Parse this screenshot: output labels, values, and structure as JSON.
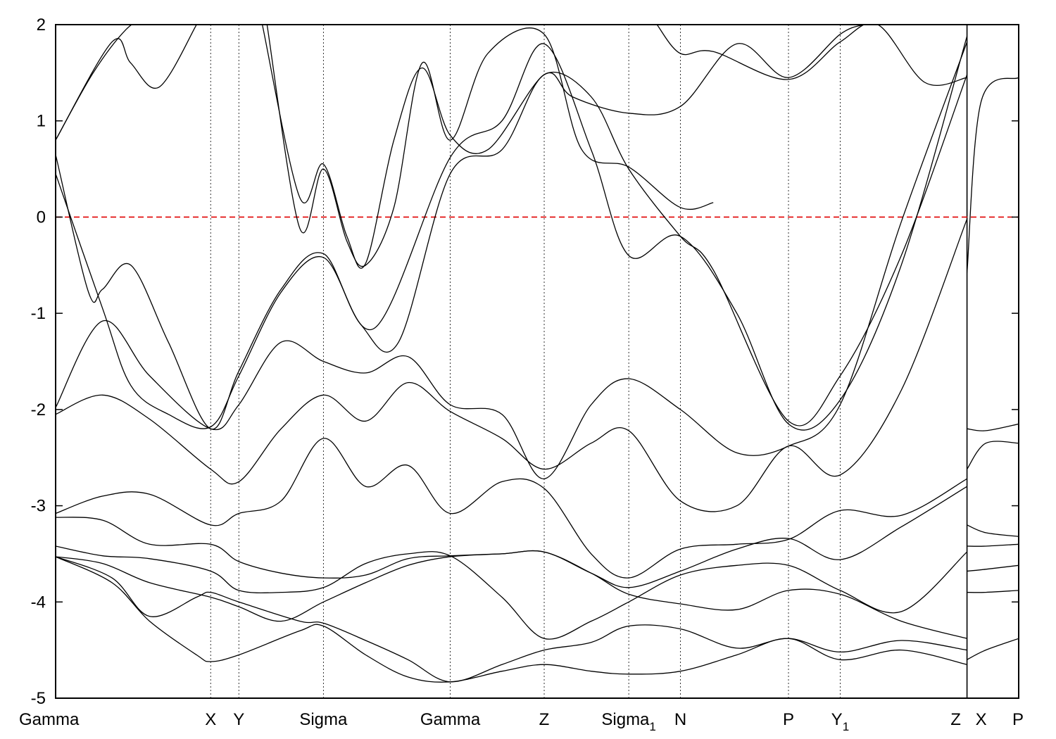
{
  "chart_data": {
    "type": "line",
    "title": "",
    "xlabel": "",
    "ylabel": "",
    "ylim": [
      -5,
      2
    ],
    "yticks": [
      -5,
      -4,
      -3,
      -2,
      -1,
      0,
      1,
      2
    ],
    "xlim": [
      0,
      20.5
    ],
    "kpoints": [
      {
        "label": "Gamma",
        "sub": "",
        "x": 0
      },
      {
        "label": "X",
        "sub": "",
        "x": 3.3
      },
      {
        "label": "Y",
        "sub": "",
        "x": 3.9
      },
      {
        "label": "Sigma",
        "sub": "",
        "x": 5.7
      },
      {
        "label": "Gamma",
        "sub": "",
        "x": 8.4
      },
      {
        "label": "Z",
        "sub": "",
        "x": 10.4
      },
      {
        "label": "Sigma",
        "sub": "1",
        "x": 12.2
      },
      {
        "label": "N",
        "sub": "",
        "x": 13.3
      },
      {
        "label": "P",
        "sub": "",
        "x": 15.6
      },
      {
        "label": "Y",
        "sub": "1",
        "x": 16.7
      },
      {
        "label": "Z",
        "sub": "",
        "x": 19.4
      },
      {
        "label": "X",
        "sub": "",
        "x": 19.4
      },
      {
        "label": "P",
        "sub": "",
        "x": 20.5
      }
    ],
    "fermi_level": {
      "y": 0,
      "color": "#e00000",
      "style": "dashed"
    },
    "grid": "vertical dotted lines at k-points",
    "series": [
      {
        "x": [
          0,
          1.2,
          2.0,
          3.0,
          3.3,
          3.9,
          5.2,
          5.7,
          6.6,
          7.5,
          8.4,
          9.5,
          10.4,
          11.4,
          12.2,
          13.3,
          14.5,
          15.6,
          16.7,
          18.0,
          19.4
        ],
        "y": [
          -3.53,
          -3.8,
          -4.2,
          -4.55,
          -4.62,
          -4.55,
          -4.3,
          -4.25,
          -4.55,
          -4.78,
          -4.83,
          -4.72,
          -4.65,
          -4.72,
          -4.75,
          -4.72,
          -4.55,
          -4.38,
          -4.6,
          -4.5,
          -4.65
        ]
      },
      {
        "x": [
          0,
          1.2,
          2.0,
          3.0,
          3.3,
          3.9,
          5.2,
          5.7,
          6.6,
          7.5,
          8.4,
          9.5,
          10.4,
          11.4,
          12.2,
          13.3,
          14.5,
          15.6,
          16.7,
          18.0,
          19.4
        ],
        "y": [
          -3.53,
          -3.75,
          -4.15,
          -3.95,
          -3.9,
          -4.0,
          -4.2,
          -4.22,
          -4.4,
          -4.6,
          -4.83,
          -4.65,
          -4.5,
          -4.42,
          -4.25,
          -4.28,
          -4.48,
          -4.38,
          -4.52,
          -4.4,
          -4.5
        ]
      },
      {
        "x": [
          0,
          1.0,
          2.0,
          3.3,
          3.9,
          4.8,
          5.7,
          6.6,
          7.5,
          8.4,
          9.5,
          10.4,
          11.4,
          12.2,
          13.3,
          14.5,
          15.6,
          16.7,
          18.0,
          19.4
        ],
        "y": [
          -3.53,
          -3.6,
          -3.8,
          -3.95,
          -4.05,
          -4.2,
          -4.0,
          -3.8,
          -3.62,
          -3.53,
          -3.5,
          -3.48,
          -3.7,
          -3.92,
          -4.02,
          -4.08,
          -3.88,
          -3.92,
          -4.2,
          -4.38
        ]
      },
      {
        "x": [
          0,
          1.0,
          2.0,
          3.3,
          3.9,
          4.8,
          5.7,
          6.6,
          7.5,
          8.4,
          9.5,
          10.4,
          11.4,
          12.2,
          13.3,
          14.5,
          15.6,
          16.7,
          18.0,
          19.4
        ],
        "y": [
          -3.42,
          -3.52,
          -3.55,
          -3.68,
          -3.88,
          -3.9,
          -3.85,
          -3.6,
          -3.5,
          -3.52,
          -3.95,
          -4.38,
          -4.2,
          -4.0,
          -3.72,
          -3.62,
          -3.62,
          -3.88,
          -4.1,
          -3.48
        ]
      },
      {
        "x": [
          0,
          1.0,
          2.0,
          3.3,
          3.9,
          4.8,
          5.7,
          6.6,
          7.5,
          8.4,
          9.5,
          10.4,
          11.4,
          12.2,
          13.3,
          14.5,
          15.6,
          16.7,
          18.0,
          19.4
        ],
        "y": [
          -3.12,
          -3.15,
          -3.4,
          -3.4,
          -3.58,
          -3.7,
          -3.75,
          -3.72,
          -3.55,
          -3.52,
          -3.5,
          -3.48,
          -3.7,
          -3.85,
          -3.68,
          -3.45,
          -3.34,
          -3.56,
          -3.22,
          -2.8
        ]
      },
      {
        "x": [
          0,
          1.0,
          2.0,
          3.3,
          3.9,
          4.8,
          5.7,
          6.6,
          7.5,
          8.4,
          9.5,
          10.4,
          11.4,
          12.2,
          13.3,
          14.5,
          15.6,
          16.7,
          18.0,
          19.4
        ],
        "y": [
          -3.08,
          -2.9,
          -2.88,
          -3.2,
          -3.08,
          -2.95,
          -2.3,
          -2.8,
          -2.58,
          -3.08,
          -2.75,
          -2.82,
          -3.5,
          -3.75,
          -3.45,
          -3.4,
          -3.35,
          -3.05,
          -3.1,
          -2.72
        ]
      },
      {
        "x": [
          0,
          1.0,
          2.0,
          3.3,
          3.9,
          4.8,
          5.7,
          6.6,
          7.5,
          8.4,
          9.5,
          10.4,
          11.4,
          12.2,
          13.3,
          14.5,
          15.6,
          16.7,
          18.0,
          19.4
        ],
        "y": [
          -2.05,
          -1.85,
          -2.1,
          -2.62,
          -2.75,
          -2.2,
          -1.85,
          -2.12,
          -1.72,
          -2.02,
          -2.3,
          -2.62,
          -2.35,
          -2.22,
          -2.95,
          -3.0,
          -2.38,
          -2.68,
          -1.8,
          -0.02
        ]
      },
      {
        "x": [
          0,
          1.0,
          2.0,
          3.3,
          3.9,
          4.8,
          5.7,
          6.6,
          7.5,
          8.4,
          9.5,
          10.4,
          11.4,
          12.2,
          13.3,
          14.5,
          15.6,
          16.7,
          18.0,
          19.4
        ],
        "y": [
          -1.98,
          -1.08,
          -1.65,
          -2.2,
          -1.95,
          -1.3,
          -1.5,
          -1.62,
          -1.45,
          -1.95,
          -2.05,
          -2.72,
          -1.95,
          -1.68,
          -2.0,
          -2.45,
          -2.38,
          -1.95,
          -0.05,
          1.82
        ]
      },
      {
        "x": [
          0,
          1.0,
          1.6,
          2.4,
          3.3,
          3.9,
          4.8,
          5.7,
          6.5,
          7.3,
          8.4,
          9.5,
          10.4,
          11.4,
          12.2,
          13.3,
          14.0,
          15.6,
          16.7,
          18.0,
          19.4
        ],
        "y": [
          0.45,
          -0.95,
          -1.75,
          -2.05,
          -2.18,
          -1.65,
          -0.78,
          -0.42,
          -1.12,
          -1.3,
          0.45,
          0.7,
          1.48,
          1.25,
          0.5,
          -0.2,
          -0.55,
          -2.12,
          -1.65,
          -0.4,
          1.48
        ]
      },
      {
        "x": [
          0,
          0.7,
          1.0,
          1.6,
          2.4,
          3.3,
          3.9,
          4.8,
          5.7,
          6.8,
          8.4,
          9.5,
          10.4,
          11.4,
          12.2,
          13.3,
          14.5,
          15.6,
          16.7,
          18.0,
          19.4
        ],
        "y": [
          0.65,
          -0.78,
          -0.75,
          -0.5,
          -1.3,
          -2.2,
          -1.6,
          -0.75,
          -0.38,
          -1.15,
          0.62,
          1.0,
          1.8,
          0.7,
          -0.4,
          -0.2,
          -1.0,
          -2.15,
          -1.9,
          -0.5,
          1.88
        ]
      },
      {
        "x": [
          0,
          1.2,
          1.6,
          2.2,
          3.0
        ],
        "y": [
          0.8,
          1.82,
          1.6,
          1.35,
          2.0
        ]
      },
      {
        "x": [
          0,
          0.8,
          1.5,
          2.0
        ],
        "y": [
          0.8,
          1.5,
          1.95,
          2.1
        ]
      },
      {
        "x": [
          4.4,
          5.2,
          5.7,
          6.2,
          6.6,
          7.2,
          7.8,
          8.4,
          9.2,
          10.4,
          11.0,
          12.2,
          13.3,
          14.5,
          15.6,
          16.7,
          17.2
        ],
        "y": [
          2.0,
          0.2,
          0.55,
          -0.2,
          -0.48,
          0.8,
          1.55,
          0.85,
          0.7,
          1.48,
          1.25,
          1.08,
          1.15,
          1.8,
          1.45,
          1.9,
          2.0
        ]
      },
      {
        "x": [
          4.5,
          5.2,
          5.7,
          6.2,
          6.6,
          7.2,
          7.8,
          8.4,
          9.2,
          10.4,
          11.2,
          12.2,
          13.3,
          14.0
        ],
        "y": [
          2.0,
          -0.12,
          0.5,
          -0.25,
          -0.5,
          0.1,
          1.6,
          0.8,
          1.7,
          1.9,
          0.7,
          0.52,
          0.1,
          0.15
        ]
      },
      {
        "x": [
          12.8,
          13.3,
          14.0,
          15.6,
          16.7,
          17.5,
          18.5,
          19.4
        ],
        "y": [
          2.0,
          1.7,
          1.72,
          1.43,
          1.82,
          2.0,
          1.4,
          1.45
        ]
      },
      {
        "x": [
          19.4,
          19.8,
          20.5
        ],
        "y": [
          -2.62,
          -2.35,
          -2.35
        ]
      },
      {
        "x": [
          19.4,
          19.8,
          20.5
        ],
        "y": [
          -2.2,
          -2.22,
          -2.15
        ]
      },
      {
        "x": [
          19.4,
          19.8,
          20.5
        ],
        "y": [
          -3.2,
          -3.28,
          -3.32
        ]
      },
      {
        "x": [
          19.4,
          19.8,
          20.5
        ],
        "y": [
          -3.42,
          -3.42,
          -3.4
        ]
      },
      {
        "x": [
          19.4,
          19.8,
          20.5
        ],
        "y": [
          -3.68,
          -3.66,
          -3.62
        ]
      },
      {
        "x": [
          19.4,
          19.8,
          20.5
        ],
        "y": [
          -3.9,
          -3.9,
          -3.88
        ]
      },
      {
        "x": [
          19.4,
          19.8,
          20.5
        ],
        "y": [
          -4.6,
          -4.5,
          -4.38
        ]
      },
      {
        "x": [
          19.4,
          19.7,
          20.5
        ],
        "y": [
          -0.58,
          1.2,
          1.45
        ]
      }
    ]
  }
}
